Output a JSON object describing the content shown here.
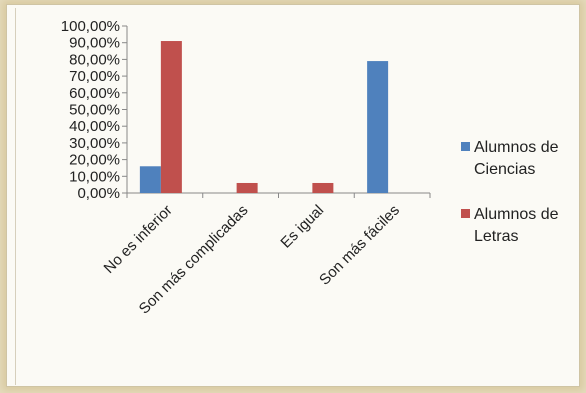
{
  "chart_data": {
    "type": "bar",
    "categories": [
      "No es inferior",
      "Son más complicadas",
      "Es igual",
      "Son más fáciles"
    ],
    "series": [
      {
        "name": "Alumnos de Ciencias",
        "color": "#4f81bd",
        "values": [
          16,
          0,
          0,
          79
        ]
      },
      {
        "name": "Alumnos de Letras",
        "color": "#c0504d",
        "values": [
          91,
          6,
          6,
          0
        ]
      }
    ],
    "yticks": [
      "0,00%",
      "10,00%",
      "20,00%",
      "30,00%",
      "40,00%",
      "50,00%",
      "60,00%",
      "70,00%",
      "80,00%",
      "90,00%",
      "100,00%"
    ],
    "ylim": [
      0,
      100
    ],
    "legend": {
      "position": "right",
      "entries": [
        {
          "lines": [
            "Alumnos de",
            "Ciencias"
          ]
        },
        {
          "lines": [
            "Alumnos de",
            "Letras"
          ]
        }
      ]
    },
    "grid": false
  }
}
